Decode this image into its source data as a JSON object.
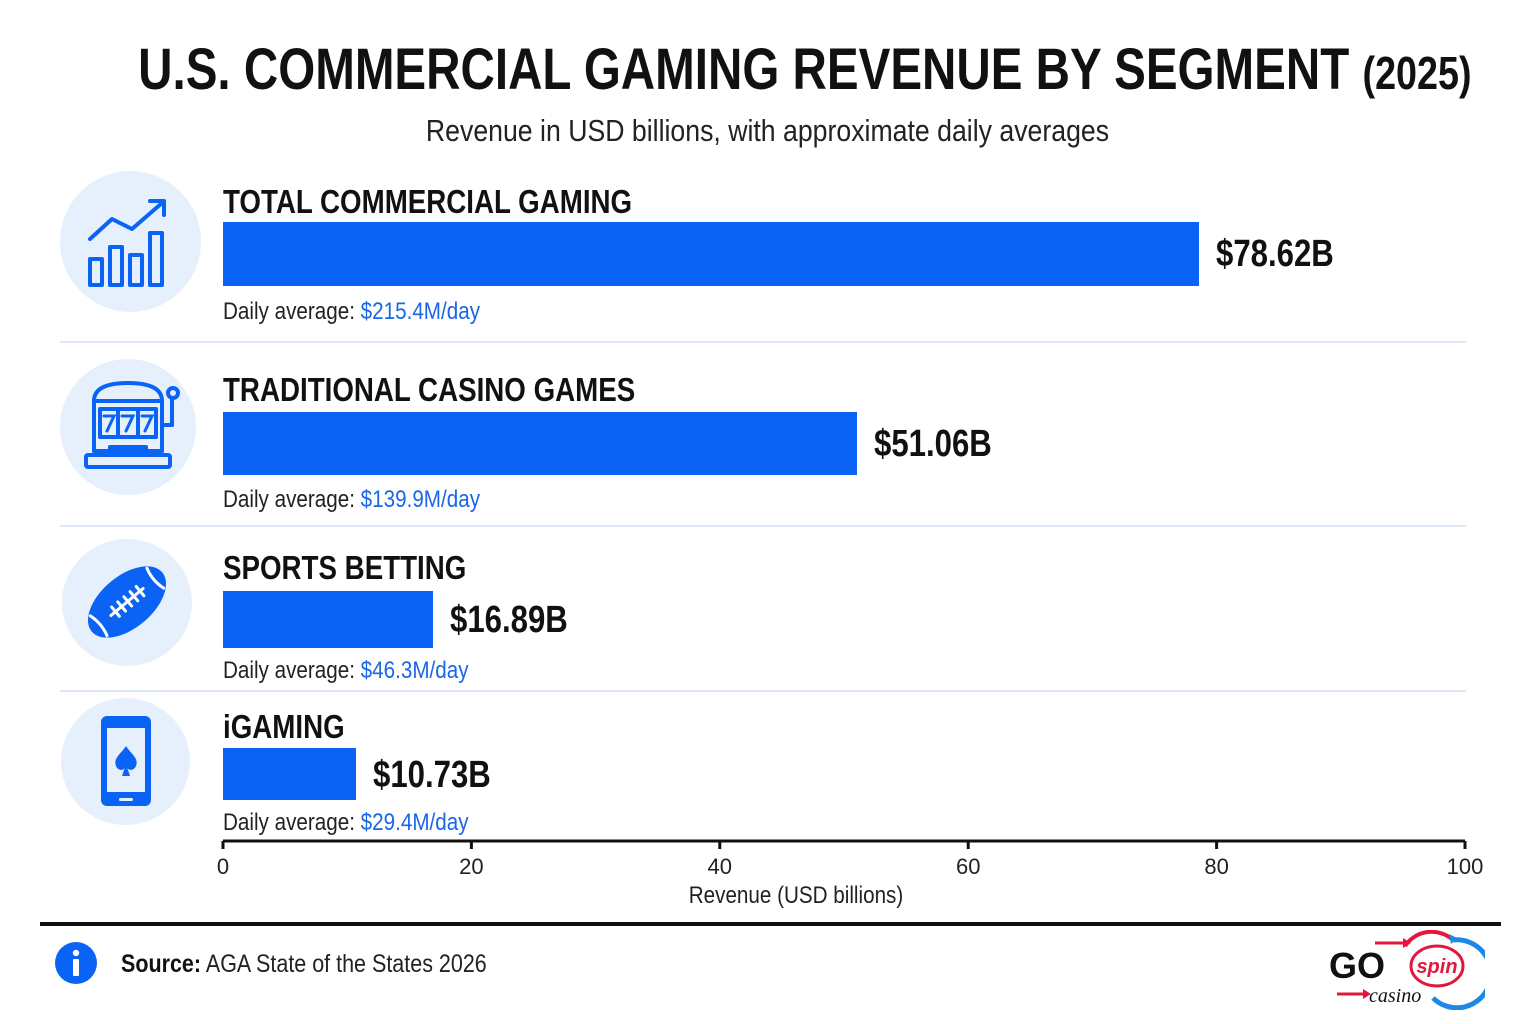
{
  "header": {
    "title": "U.S. COMMERCIAL GAMING REVENUE BY SEGMENT",
    "title_year": "(2025)",
    "subtitle": "Revenue in USD billions, with approximate daily averages"
  },
  "segments": [
    {
      "label": "TOTAL COMMERCIAL GAMING",
      "value_label": "$78.62B",
      "daily_label": "Daily average:",
      "daily_value": "$215.4M/day",
      "icon": "growth-chart-icon"
    },
    {
      "label": "TRADITIONAL CASINO GAMES",
      "value_label": "$51.06B",
      "daily_label": "Daily average:",
      "daily_value": "$139.9M/day",
      "icon": "slot-machine-icon"
    },
    {
      "label": "SPORTS BETTING",
      "value_label": "$16.89B",
      "daily_label": "Daily average:",
      "daily_value": "$46.3M/day",
      "icon": "football-icon"
    },
    {
      "label": "iGAMING",
      "value_label": "$10.73B",
      "daily_label": "Daily average:",
      "daily_value": "$29.4M/day",
      "icon": "phone-spade-icon"
    }
  ],
  "chart_data": {
    "type": "bar",
    "orientation": "horizontal",
    "categories": [
      "TOTAL COMMERCIAL GAMING",
      "TRADITIONAL CASINO GAMES",
      "SPORTS BETTING",
      "iGAMING"
    ],
    "values": [
      78.62,
      51.06,
      16.89,
      10.73
    ],
    "title": "U.S. COMMERCIAL GAMING REVENUE BY SEGMENT (2025)",
    "subtitle": "Revenue in USD billions, with approximate daily averages",
    "xlabel": "Revenue (USD billions)",
    "ylabel": "",
    "xlim": [
      0,
      100
    ],
    "xticks": [
      0,
      20,
      40,
      60,
      80,
      100
    ],
    "grid": false,
    "colors": {
      "bar": "#0a63f5"
    }
  },
  "footer": {
    "source_label": "Source:",
    "source_text": "AGA State of the States 2026",
    "logo_main": "GO",
    "logo_spin": "spin",
    "logo_sub": "casino"
  },
  "colors": {
    "accent": "#0a63f5",
    "daily_value": "#1a66e8",
    "logo_red": "#e3173e"
  }
}
